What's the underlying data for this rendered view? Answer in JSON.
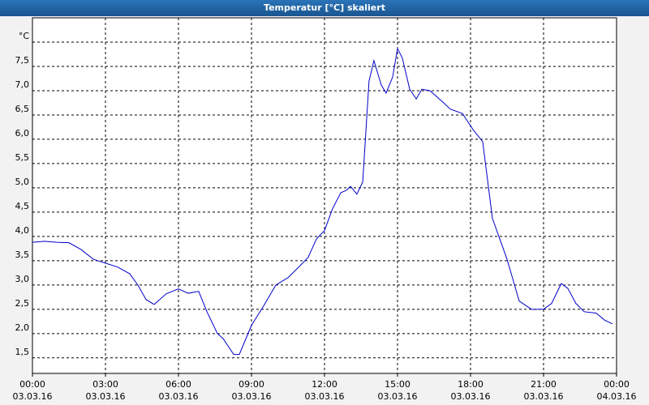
{
  "chart_data": {
    "type": "line",
    "title": "Temperatur [°C] skaliert",
    "x": [
      0,
      0.5,
      1.0,
      1.5,
      2.0,
      2.5,
      3.0,
      3.5,
      4.0,
      4.33,
      4.67,
      5.0,
      5.5,
      6.0,
      6.4,
      6.83,
      7.17,
      7.6,
      7.83,
      8.27,
      8.5,
      9.0,
      9.5,
      10.0,
      10.5,
      11.0,
      11.33,
      11.67,
      12.0,
      12.33,
      12.67,
      12.9,
      13.07,
      13.33,
      13.57,
      13.83,
      14.03,
      14.33,
      14.53,
      14.8,
      15.0,
      15.2,
      15.5,
      15.77,
      16.0,
      16.33,
      16.83,
      17.17,
      17.67,
      18.1,
      18.5,
      18.9,
      19.5,
      20.0,
      20.5,
      21.0,
      21.33,
      21.73,
      22.0,
      22.33,
      22.67,
      23.17,
      23.5,
      23.83
    ],
    "series": [
      {
        "color": "#0000cc",
        "values": [
          3.88,
          3.9,
          3.88,
          3.87,
          3.73,
          3.53,
          3.45,
          3.37,
          3.23,
          3.0,
          2.7,
          2.6,
          2.82,
          2.92,
          2.83,
          2.87,
          2.45,
          2.0,
          1.9,
          1.57,
          1.57,
          2.17,
          2.57,
          3.0,
          3.15,
          3.4,
          3.57,
          3.95,
          4.12,
          4.57,
          4.9,
          4.95,
          5.03,
          4.87,
          5.12,
          7.2,
          7.62,
          7.12,
          6.95,
          7.28,
          7.87,
          7.67,
          7.03,
          6.83,
          7.03,
          7.0,
          6.78,
          6.62,
          6.53,
          6.2,
          5.95,
          4.37,
          3.53,
          2.67,
          2.5,
          2.5,
          2.62,
          3.03,
          2.93,
          2.62,
          2.45,
          2.42,
          2.28,
          2.2
        ]
      }
    ],
    "xlim": [
      0,
      24
    ],
    "xticks": [
      {
        "value": 0,
        "label": "00:00"
      },
      {
        "value": 3,
        "label": "03:00"
      },
      {
        "value": 6,
        "label": "06:00"
      },
      {
        "value": 9,
        "label": "09:00"
      },
      {
        "value": 12,
        "label": "12:00"
      },
      {
        "value": 15,
        "label": "15:00"
      },
      {
        "value": 18,
        "label": "18:00"
      },
      {
        "value": 21,
        "label": "21:00"
      },
      {
        "value": 24,
        "label": "00:00"
      }
    ],
    "xtick_dates": [
      "03.03.16",
      "03.03.16",
      "03.03.16",
      "03.03.16",
      "03.03.16",
      "03.03.16",
      "03.03.16",
      "03.03.16",
      "04.03.16"
    ],
    "ylim": [
      1.18,
      8.5
    ],
    "yticks": [
      {
        "value": 1.5,
        "label": "1,5"
      },
      {
        "value": 2,
        "label": "2,0"
      },
      {
        "value": 2.5,
        "label": "2,5"
      },
      {
        "value": 3,
        "label": "3,0"
      },
      {
        "value": 3.5,
        "label": "3,5"
      },
      {
        "value": 4,
        "label": "4,0"
      },
      {
        "value": 4.5,
        "label": "4,5"
      },
      {
        "value": 5,
        "label": "5,0"
      },
      {
        "value": 5.5,
        "label": "5,5"
      },
      {
        "value": 6,
        "label": "6,0"
      },
      {
        "value": 6.5,
        "label": "6,5"
      },
      {
        "value": 7,
        "label": "7,0"
      },
      {
        "value": 7.5,
        "label": "7,5"
      },
      {
        "value": 8,
        "label": "°C"
      }
    ],
    "grid": true
  }
}
